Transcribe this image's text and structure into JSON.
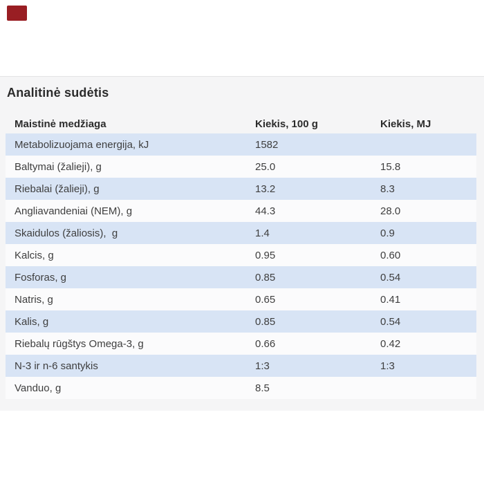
{
  "colors": {
    "page_background": "#ffffff",
    "panel_background": "#f5f5f6",
    "panel_border_top": "#e3e3e4",
    "row_blue": "#d8e4f5",
    "row_white": "#fbfbfc",
    "brand_mark": "#991e23",
    "title_text": "#2b2b2b",
    "row_text": "#3e3e3e"
  },
  "brand_mark": {
    "name": "red-brand-mark"
  },
  "section": {
    "title": "Analitinė sudėtis"
  },
  "table": {
    "columns": [
      "Maistinė medžiaga",
      "Kiekis, 100 g",
      "Kiekis, MJ"
    ],
    "rows": [
      {
        "label": "Metabolizuojama energija, kJ",
        "per100g": "1582",
        "perMJ": ""
      },
      {
        "label": "Baltymai (žalieji), g",
        "per100g": "25.0",
        "perMJ": "15.8"
      },
      {
        "label": "Riebalai (žalieji), g",
        "per100g": "13.2",
        "perMJ": "8.3"
      },
      {
        "label": "Angliavandeniai (NEM), g",
        "per100g": "44.3",
        "perMJ": "28.0"
      },
      {
        "label": "Skaidulos (žaliosis),  g",
        "per100g": "1.4",
        "perMJ": "0.9"
      },
      {
        "label": "Kalcis, g",
        "per100g": "0.95",
        "perMJ": "0.60"
      },
      {
        "label": "Fosforas, g",
        "per100g": "0.85",
        "perMJ": "0.54"
      },
      {
        "label": "Natris, g",
        "per100g": "0.65",
        "perMJ": "0.41"
      },
      {
        "label": "Kalis, g",
        "per100g": "0.85",
        "perMJ": "0.54"
      },
      {
        "label": "Riebalų rūgštys Omega-3, g",
        "per100g": "0.66",
        "perMJ": "0.42"
      },
      {
        "label": "N-3 ir n-6 santykis",
        "per100g": "1:3",
        "perMJ": "1:3"
      },
      {
        "label": "Vanduo, g",
        "per100g": "8.5",
        "perMJ": ""
      }
    ]
  }
}
